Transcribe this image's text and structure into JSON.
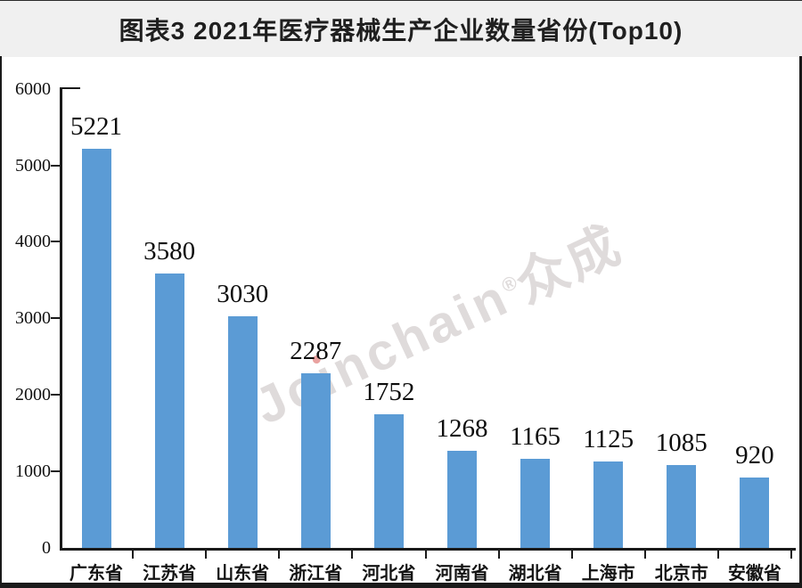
{
  "header": {
    "title": "图表3 2021年医疗器械生产企业数量省份(Top10)"
  },
  "watermark": {
    "latin_head": "Jo",
    "latin_i": "ı",
    "latin_tail": "nchain",
    "reg_mark": "®",
    "cjk": "众成"
  },
  "chart_data": {
    "type": "bar",
    "title": "图表3 2021年医疗器械生产企业数量省份(Top10)",
    "categories": [
      "广东省",
      "江苏省",
      "山东省",
      "浙江省",
      "河北省",
      "河南省",
      "湖北省",
      "上海市",
      "北京市",
      "安徽省"
    ],
    "values": [
      5221,
      3580,
      3030,
      2287,
      1752,
      1268,
      1165,
      1125,
      1085,
      920
    ],
    "data_labels": [
      "5221",
      "3580",
      "3030",
      "2287",
      "1752",
      "1268",
      "1165",
      "1125",
      "1085",
      "920"
    ],
    "xlabel": "",
    "ylabel": "",
    "ylim": [
      0,
      6000
    ],
    "yticks": [
      0,
      1000,
      2000,
      3000,
      4000,
      5000,
      6000
    ],
    "ytick_labels": [
      "0",
      "1000",
      "2000",
      "3000",
      "4000",
      "5000",
      "6000"
    ],
    "grid": false,
    "legend_position": "none",
    "bar_color": "#5B9BD5"
  },
  "colors": {
    "title_band_bg": "#F0F0F0",
    "title_text": "#1F1F1F",
    "frame": "#1A1A1A",
    "bar": "#5B9BD5",
    "axis_text": "#111111",
    "watermark": "#DFDBDB",
    "watermark_i_dot": "#E9A2A0",
    "background": "#FFFFFF"
  }
}
